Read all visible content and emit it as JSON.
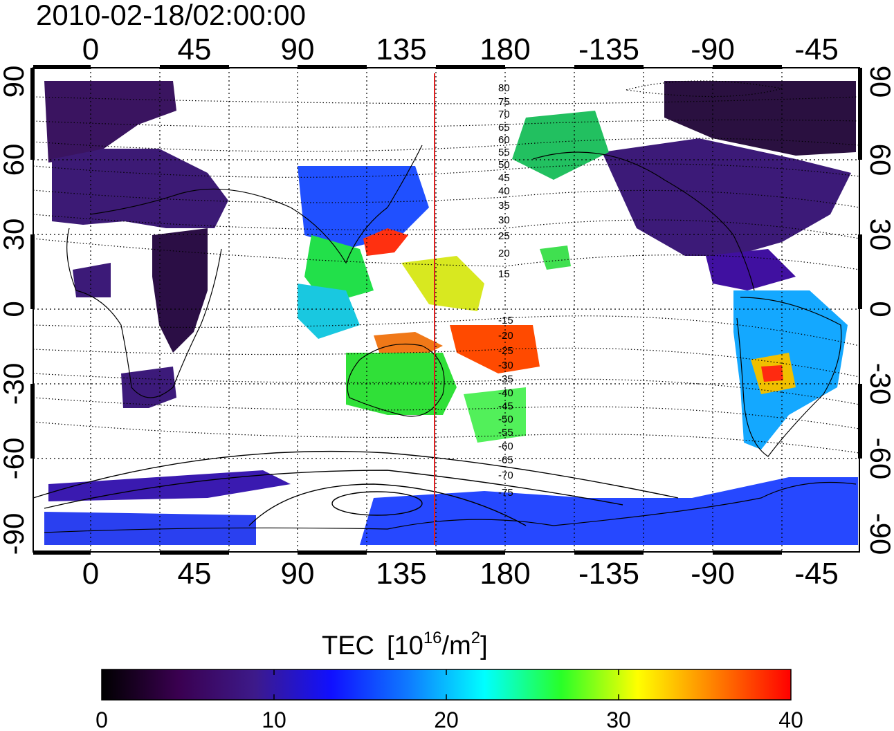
{
  "timestamp": "2010-02-18/02:00:00",
  "lon_ticks": [
    "0",
    "45",
    "90",
    "135",
    "180",
    "-135",
    "-90",
    "-45"
  ],
  "lat_ticks": [
    "90",
    "60",
    "30",
    "0",
    "-30",
    "-60",
    "-90"
  ],
  "contour_labels": [
    "80",
    "75",
    "70",
    "65",
    "60",
    "55",
    "50",
    "45",
    "40",
    "35",
    "30",
    "25",
    "20",
    "15",
    "-15",
    "-20",
    "-25",
    "-30",
    "-35",
    "-40",
    "-45",
    "-50",
    "-55",
    "-60",
    "-65",
    "-70",
    "-75"
  ],
  "colorbar": {
    "title": "TEC",
    "unit_base": "[10",
    "unit_exp": "16",
    "unit_mid": "/m",
    "unit_exp2": "2",
    "unit_end": "]",
    "ticks": [
      "0",
      "10",
      "20",
      "30",
      "40"
    ],
    "range": [
      0,
      40
    ],
    "colors": [
      "#000000",
      "#3a0050",
      "#3d1a8a",
      "#1010ff",
      "#0f7aff",
      "#00ffff",
      "#28ff28",
      "#ffff00",
      "#ff8000",
      "#ff0000"
    ]
  },
  "map": {
    "lon_range": [
      -25,
      325
    ],
    "lat_range": [
      -90,
      90
    ],
    "marker_longitude": 150,
    "marker_color": "#e02020"
  }
}
